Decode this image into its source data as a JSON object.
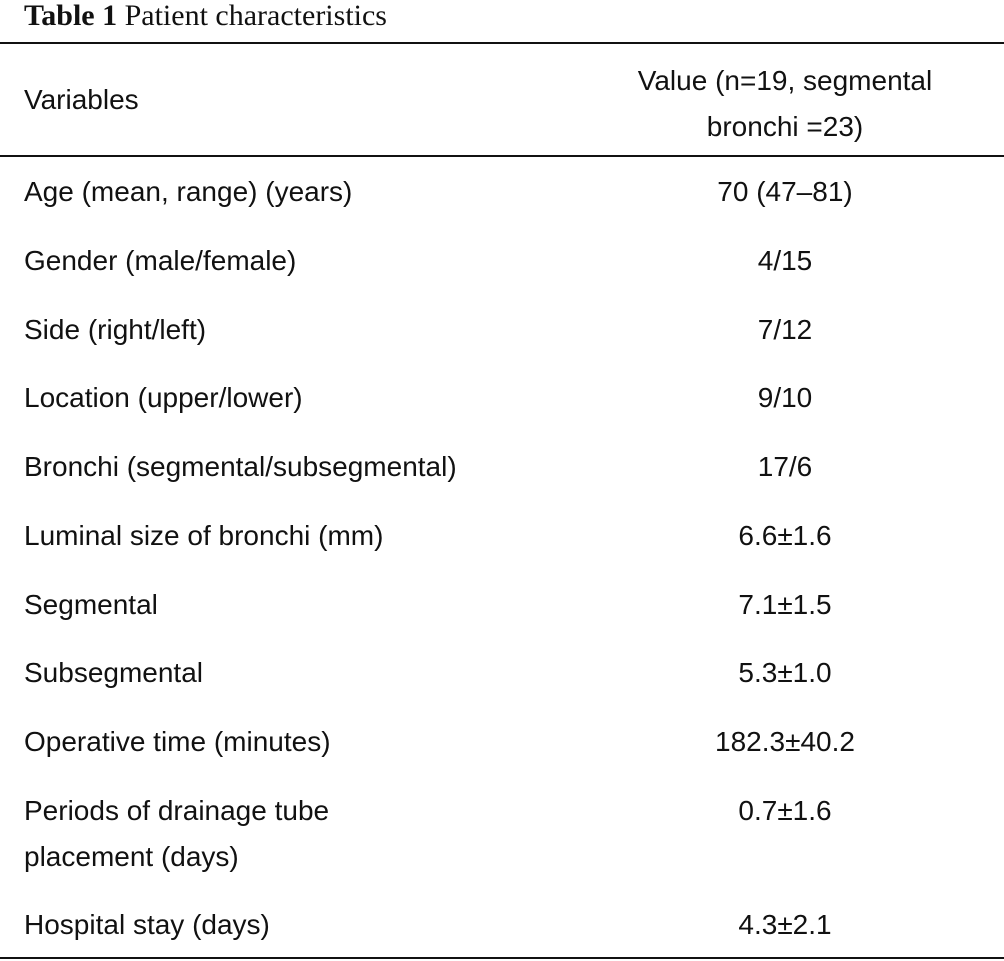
{
  "caption": {
    "label": "Table 1",
    "title": "Patient characteristics"
  },
  "header": {
    "col1": "Variables",
    "col2_line1": "Value (n=19, segmental",
    "col2_line2": "bronchi =23)"
  },
  "rows": [
    {
      "variable": "Age (mean, range) (years)",
      "value": "70 (47–81)"
    },
    {
      "variable": "Gender (male/female)",
      "value": "4/15"
    },
    {
      "variable": "Side (right/left)",
      "value": "7/12"
    },
    {
      "variable": "Location (upper/lower)",
      "value": "9/10"
    },
    {
      "variable": "Bronchi (segmental/subsegmental)",
      "value": "17/6"
    },
    {
      "variable": "Luminal size of bronchi (mm)",
      "value": "6.6±1.6"
    },
    {
      "variable": "Segmental",
      "value": "7.1±1.5"
    },
    {
      "variable": "Subsegmental",
      "value": "5.3±1.0"
    },
    {
      "variable": "Operative time (minutes)",
      "value": "182.3±40.2"
    },
    {
      "variable_line1": "Periods of drainage tube",
      "variable_line2": "placement (days)",
      "value": "0.7±1.6"
    },
    {
      "variable": "Hospital stay (days)",
      "value": "4.3±2.1"
    }
  ]
}
